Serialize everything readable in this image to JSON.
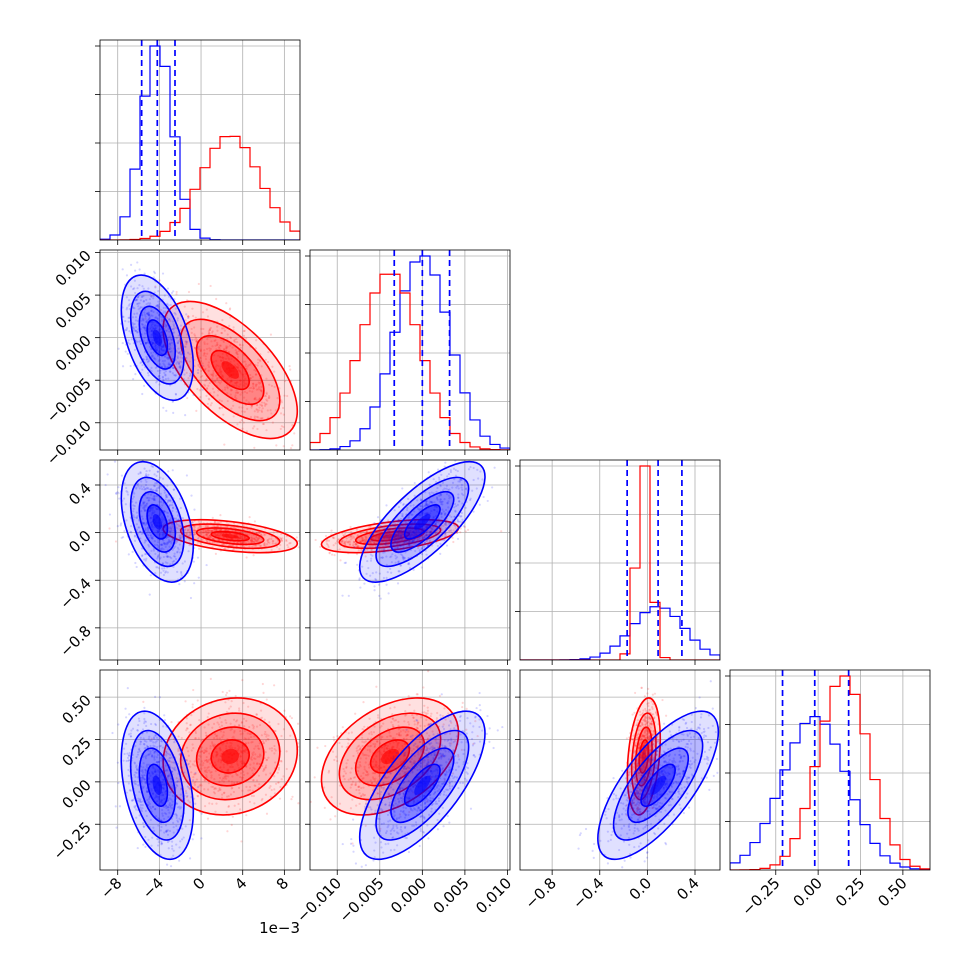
{
  "chart_data": {
    "type": "corner",
    "parameters": 4,
    "series": [
      {
        "color": "#0000ff",
        "mean": [
          -0.0042,
          0.0,
          0.09,
          -0.02
        ],
        "sd": [
          0.0015,
          0.0032,
          0.22,
          0.19
        ],
        "corr": [
          [
            1,
            -0.45,
            -0.4,
            -0.35
          ],
          [
            -0.45,
            1,
            0.75,
            0.7
          ],
          [
            -0.4,
            0.75,
            1,
            0.72
          ],
          [
            -0.35,
            0.7,
            0.72,
            1
          ]
        ]
      },
      {
        "color": "#ff0000",
        "mean": [
          0.0028,
          -0.0038,
          -0.03,
          0.15
        ],
        "sd": [
          0.0028,
          0.0035,
          0.06,
          0.15
        ],
        "corr": [
          [
            1,
            -0.6,
            -0.45,
            0.1
          ],
          [
            -0.6,
            1,
            0.5,
            0.4
          ],
          [
            -0.45,
            0.5,
            1,
            0.3
          ],
          [
            0.1,
            0.4,
            0.3,
            1
          ]
        ]
      }
    ],
    "quantile_lines": [
      [
        -0.0057,
        -0.0042,
        -0.0025
      ],
      [
        -0.0033,
        0.0,
        0.0032
      ],
      [
        -0.17,
        0.09,
        0.29
      ],
      [
        -0.21,
        -0.02,
        0.18
      ]
    ],
    "axis_ranges": [
      [
        -0.0097,
        0.0095
      ],
      [
        -0.0132,
        0.0103
      ],
      [
        -1.07,
        0.61
      ],
      [
        -0.52,
        0.66
      ]
    ],
    "ticks": [
      {
        "values": [
          -0.008,
          -0.004,
          0.0,
          0.004,
          0.008
        ],
        "labels": [
          "−8",
          "−4",
          "0",
          "4",
          "8"
        ]
      },
      {
        "values": [
          -0.01,
          -0.005,
          0.0,
          0.005,
          0.01
        ],
        "labels": [
          "−0.010",
          "−0.005",
          "0.000",
          "0.005",
          "0.010"
        ]
      },
      {
        "values": [
          -0.8,
          -0.4,
          0.0,
          0.4
        ],
        "labels": [
          "−0.8",
          "−0.4",
          "0.0",
          "0.4"
        ]
      },
      {
        "values": [
          -0.25,
          0.0,
          0.25,
          0.5
        ],
        "labels": [
          "−0.25",
          "0.00",
          "0.25",
          "0.50"
        ]
      }
    ],
    "offset_text": "1e−3",
    "grid": true,
    "quantile_line_color": "#0000ff",
    "hist1d_tick_levels": [
      0.25,
      0.5,
      0.75,
      1.0
    ]
  }
}
